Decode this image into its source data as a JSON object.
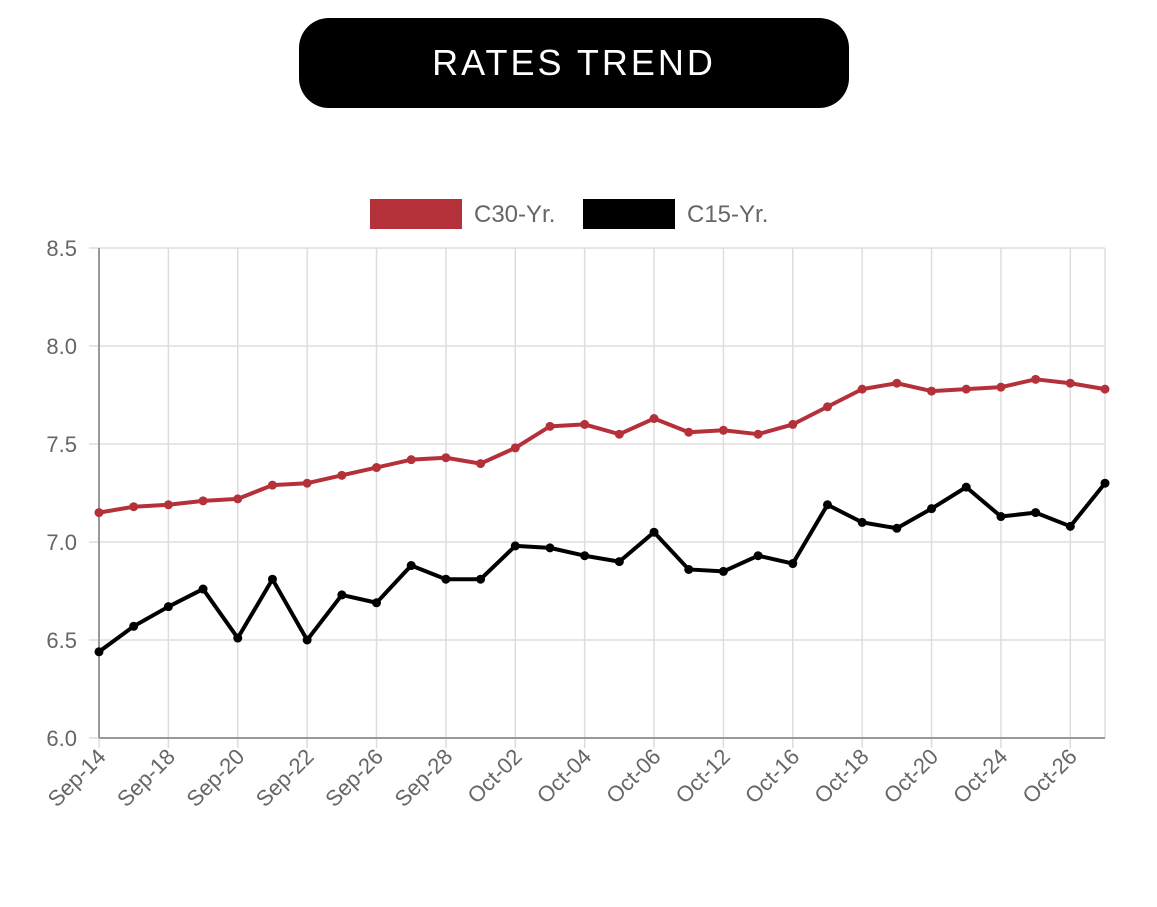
{
  "header": {
    "title": "RATES TREND"
  },
  "colors": {
    "c30": "#b5313a",
    "c15": "#000000",
    "grid": "#dddddd",
    "axis": "#999999",
    "text": "#666666"
  },
  "chart_data": {
    "type": "line",
    "title": "RATES TREND",
    "xlabel": "",
    "ylabel": "",
    "ylim": [
      6.0,
      8.5
    ],
    "yticks": [
      "6.0",
      "6.5",
      "7.0",
      "7.5",
      "8.0",
      "8.5"
    ],
    "grid": true,
    "legend_position": "top-center",
    "x_tick_labels": [
      "Sep-14",
      "Sep-18",
      "Sep-20",
      "Sep-22",
      "Sep-26",
      "Sep-28",
      "Oct-02",
      "Oct-04",
      "Oct-06",
      "Oct-12",
      "Oct-16",
      "Oct-18",
      "Oct-20",
      "Oct-24",
      "Oct-26"
    ],
    "series": [
      {
        "name": "C30-Yr.",
        "color": "#b5313a",
        "values": [
          7.15,
          7.18,
          7.19,
          7.21,
          7.22,
          7.29,
          7.3,
          7.34,
          7.38,
          7.42,
          7.43,
          7.4,
          7.48,
          7.59,
          7.6,
          7.55,
          7.63,
          7.56,
          7.57,
          7.55,
          7.6,
          7.69,
          7.78,
          7.81,
          7.77,
          7.78,
          7.79,
          7.83,
          7.81,
          7.78
        ]
      },
      {
        "name": "C15-Yr.",
        "color": "#000000",
        "values": [
          6.44,
          6.57,
          6.67,
          6.76,
          6.51,
          6.81,
          6.5,
          6.73,
          6.69,
          6.88,
          6.81,
          6.81,
          6.98,
          6.97,
          6.93,
          6.9,
          7.05,
          6.86,
          6.85,
          6.93,
          6.89,
          7.19,
          7.1,
          7.07,
          7.17,
          7.28,
          7.13,
          7.15,
          7.08,
          7.3
        ]
      }
    ]
  }
}
